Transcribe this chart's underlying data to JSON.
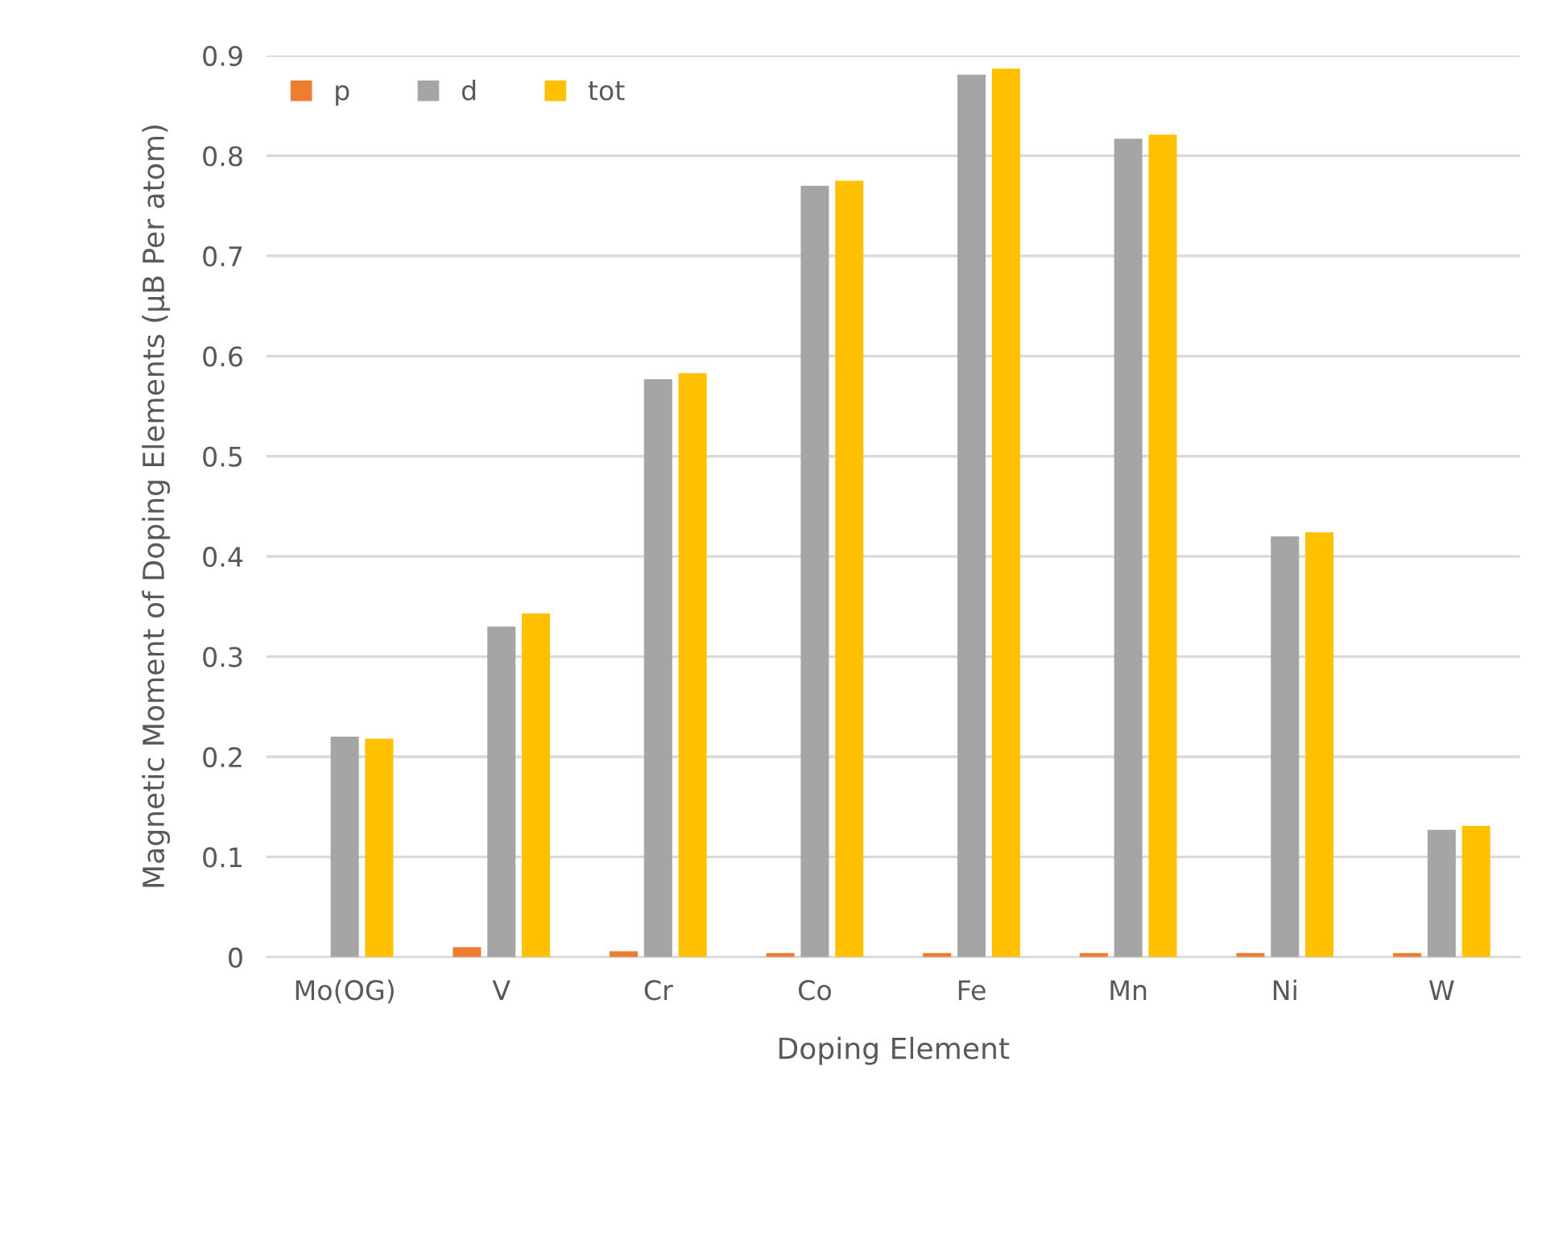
{
  "chart_data": {
    "type": "bar",
    "xlabel": "Doping Element",
    "ylabel": "Magnetic Moment of Doping Elements (μB Per atom)",
    "categories": [
      "Mo(OG)",
      "V",
      "Cr",
      "Co",
      "Fe",
      "Mn",
      "Ni",
      "W"
    ],
    "series": [
      {
        "name": "p",
        "color": "#ed7d31",
        "values": [
          0,
          0.01,
          0.006,
          0.004,
          0.004,
          0.004,
          0.004,
          0.004
        ]
      },
      {
        "name": "d",
        "color": "#a5a5a5",
        "values": [
          0.22,
          0.33,
          0.577,
          0.77,
          0.881,
          0.817,
          0.42,
          0.127
        ]
      },
      {
        "name": "tot",
        "color": "#ffc000",
        "values": [
          0.218,
          0.343,
          0.583,
          0.775,
          0.887,
          0.821,
          0.424,
          0.131
        ]
      }
    ],
    "ylim": [
      0,
      0.9
    ],
    "yticks": [
      {
        "value": 0,
        "label": "0"
      },
      0.1,
      0.2,
      0.3,
      0.4,
      0.5,
      0.6,
      0.7,
      0.8,
      0.9
    ],
    "grid": "y",
    "legend": "top left"
  }
}
